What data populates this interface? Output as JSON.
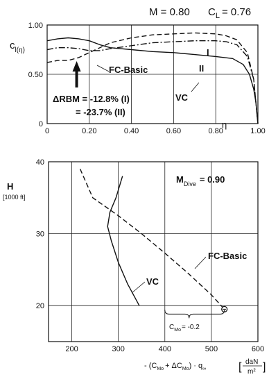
{
  "chart_data": [
    {
      "type": "line",
      "title_mach": "M = 0.80",
      "title_cl": "C",
      "title_cl_sub": "L",
      "title_cl_value": "= 0.76",
      "ylabel_main": "c",
      "ylabel_sub": "l(η)",
      "xlabel": "η",
      "xlim": [
        0,
        1.0
      ],
      "ylim": [
        0,
        1.0
      ],
      "grid": true,
      "xticks": [
        "0",
        "0.20",
        "0.40",
        "0.60",
        "0.80",
        "1.00"
      ],
      "xtick_values": [
        0,
        0.2,
        0.4,
        0.6,
        0.8,
        1.0
      ],
      "yticks": [
        "0",
        "0.50",
        "1.00"
      ],
      "ytick_values": [
        0,
        0.5,
        1.0
      ],
      "series": [
        {
          "name": "FC-Basic",
          "style": "solid",
          "x": [
            0,
            0.05,
            0.1,
            0.15,
            0.2,
            0.25,
            0.3,
            0.4,
            0.5,
            0.6,
            0.7,
            0.8,
            0.88,
            0.93,
            0.96,
            0.98,
            0.99,
            1.0
          ],
          "y": [
            0.84,
            0.86,
            0.87,
            0.86,
            0.84,
            0.8,
            0.77,
            0.75,
            0.73,
            0.72,
            0.7,
            0.68,
            0.66,
            0.6,
            0.5,
            0.35,
            0.22,
            0.0
          ]
        },
        {
          "name": "I",
          "style": "dashdot",
          "x": [
            0,
            0.05,
            0.1,
            0.15,
            0.2,
            0.25,
            0.3,
            0.4,
            0.5,
            0.6,
            0.7,
            0.8,
            0.85,
            0.9,
            0.95,
            0.98,
            1.0
          ],
          "y": [
            0.75,
            0.77,
            0.77,
            0.76,
            0.74,
            0.74,
            0.76,
            0.79,
            0.82,
            0.83,
            0.84,
            0.84,
            0.83,
            0.8,
            0.68,
            0.45,
            0.0
          ]
        },
        {
          "name": "II",
          "style": "dashed",
          "x": [
            0,
            0.05,
            0.1,
            0.15,
            0.2,
            0.25,
            0.3,
            0.4,
            0.5,
            0.6,
            0.7,
            0.8,
            0.85,
            0.9,
            0.95,
            0.98,
            1.0
          ],
          "y": [
            0.62,
            0.64,
            0.64,
            0.67,
            0.72,
            0.77,
            0.82,
            0.87,
            0.9,
            0.91,
            0.92,
            0.91,
            0.89,
            0.85,
            0.72,
            0.45,
            0.0
          ]
        }
      ],
      "labels": {
        "fc_basic": "FC-Basic",
        "vc": "VC",
        "roman_one": "I",
        "roman_two": "II",
        "rbm_line1": "ΔRBM = -12.8% (I)",
        "rbm_line2": "= -23.7% (II)"
      },
      "arrow_x": 0.14
    },
    {
      "type": "line",
      "title_prefix": "M",
      "title_sub": "Dive",
      "title_value": "= 0.90",
      "ylabel_main": "H",
      "ylabel_unit": "[1000 ft]",
      "xlabel_text": "- (C",
      "xlabel_tail": "+ ΔC",
      "xlabel_tail2": ") · q",
      "xlabel_unit": "daN",
      "xlabel_unit_den": "m²",
      "xlim": [
        150,
        600
      ],
      "ylim": [
        15,
        40
      ],
      "grid": true,
      "xticks": [
        "200",
        "300",
        "400",
        "500",
        "600"
      ],
      "xtick_values": [
        200,
        300,
        400,
        500,
        600
      ],
      "yticks": [
        "20",
        "30",
        "40"
      ],
      "ytick_values": [
        20,
        30,
        40
      ],
      "series": [
        {
          "name": "FC-Basic",
          "style": "dashed",
          "x": [
            218,
            245,
            300,
            350,
            400,
            450,
            500,
            528
          ],
          "y": [
            39,
            35,
            32.5,
            30,
            27.3,
            24.5,
            21.5,
            19.5
          ]
        },
        {
          "name": "VC",
          "style": "solid",
          "x": [
            309,
            295,
            282,
            277,
            285,
            300,
            320,
            345
          ],
          "y": [
            38,
            35,
            33,
            31,
            29,
            26,
            23,
            20
          ]
        }
      ],
      "labels": {
        "fc_basic": "FC-Basic",
        "vc": "VC",
        "cmo_note": "C",
        "cmo_note_sub": "Mo",
        "cmo_note_value": "= -0.2"
      },
      "bracket_x": [
        400,
        528
      ],
      "end_point": [
        528,
        19.5
      ]
    }
  ]
}
